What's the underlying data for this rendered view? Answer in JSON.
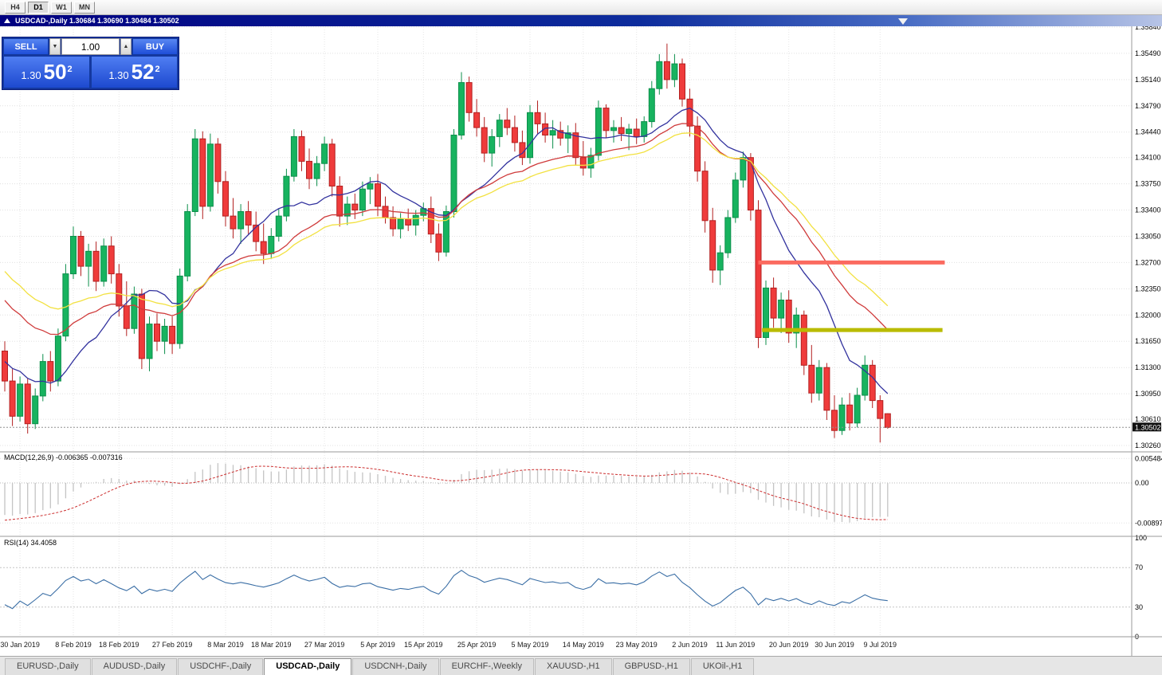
{
  "toolbar": {
    "periods": [
      "H4",
      "D1",
      "W1",
      "MN"
    ],
    "active_period": "D1"
  },
  "chart_window": {
    "title": "USDCAD-,Daily   1.30684 1.30690 1.30484 1.30502"
  },
  "trade_panel": {
    "sell_label": "SELL",
    "buy_label": "BUY",
    "volume": "1.00",
    "sell_price": {
      "base": "1.30",
      "big": "50",
      "sup": "2"
    },
    "buy_price": {
      "base": "1.30",
      "big": "52",
      "sup": "2"
    }
  },
  "indicators": {
    "macd": {
      "label": "MACD(12,26,9) -0.006365 -0.007316",
      "axis_labels": [
        "0.005484",
        "0.00",
        "-0.008974"
      ]
    },
    "rsi": {
      "label": "RSI(14) 34.4058",
      "axis_labels": [
        "100",
        "70",
        "30",
        "0"
      ],
      "levels": [
        70,
        30
      ]
    }
  },
  "tabs": {
    "active": "USDCAD-,Daily",
    "items": [
      "EURUSD-,Daily",
      "AUDUSD-,Daily",
      "USDCHF-,Daily",
      "USDCAD-,Daily",
      "USDCNH-,Daily",
      "EURCHF-,Weekly",
      "XAUUSD-,H1",
      "GBPUSD-,H1",
      "UKOil-,H1"
    ]
  },
  "chart_data": {
    "type": "candlestick",
    "symbol": "USDCAD-",
    "timeframe": "Daily",
    "bid": 1.30502,
    "price_ticks": [
      1.3584,
      1.3549,
      1.3514,
      1.3479,
      1.3444,
      1.341,
      1.3375,
      1.334,
      1.3305,
      1.327,
      1.3235,
      1.32,
      1.3165,
      1.313,
      1.3095,
      1.3061,
      1.3026
    ],
    "time_labels": [
      {
        "i": 2,
        "t": "30 Jan 2019"
      },
      {
        "i": 9,
        "t": "8 Feb 2019"
      },
      {
        "i": 15,
        "t": "18 Feb 2019"
      },
      {
        "i": 22,
        "t": "27 Feb 2019"
      },
      {
        "i": 29,
        "t": "8 Mar 2019"
      },
      {
        "i": 35,
        "t": "18 Mar 2019"
      },
      {
        "i": 42,
        "t": "27 Mar 2019"
      },
      {
        "i": 49,
        "t": "5 Apr 2019"
      },
      {
        "i": 55,
        "t": "15 Apr 2019"
      },
      {
        "i": 62,
        "t": "25 Apr 2019"
      },
      {
        "i": 69,
        "t": "5 May 2019"
      },
      {
        "i": 76,
        "t": "14 May 2019"
      },
      {
        "i": 83,
        "t": "23 May 2019"
      },
      {
        "i": 90,
        "t": "2 Jun 2019"
      },
      {
        "i": 96,
        "t": "11 Jun 2019"
      },
      {
        "i": 103,
        "t": "20 Jun 2019"
      },
      {
        "i": 109,
        "t": "30 Jun 2019"
      },
      {
        "i": 115,
        "t": "9 Jul 2019"
      }
    ],
    "candles": [
      [
        1.3152,
        1.3165,
        1.3098,
        1.3112
      ],
      [
        1.3112,
        1.3128,
        1.3052,
        1.3065
      ],
      [
        1.3065,
        1.3118,
        1.3058,
        1.3108
      ],
      [
        1.3108,
        1.3115,
        1.3042,
        1.3055
      ],
      [
        1.3055,
        1.3102,
        1.3048,
        1.3092
      ],
      [
        1.3092,
        1.3148,
        1.3085,
        1.3138
      ],
      [
        1.3138,
        1.3152,
        1.3098,
        1.3112
      ],
      [
        1.3112,
        1.3182,
        1.3105,
        1.3172
      ],
      [
        1.3172,
        1.3268,
        1.3165,
        1.3255
      ],
      [
        1.3255,
        1.3318,
        1.3248,
        1.3305
      ],
      [
        1.3305,
        1.3312,
        1.3252,
        1.3265
      ],
      [
        1.3265,
        1.3295,
        1.3238,
        1.3285
      ],
      [
        1.3285,
        1.3298,
        1.3232,
        1.3245
      ],
      [
        1.3245,
        1.3302,
        1.3238,
        1.3292
      ],
      [
        1.3292,
        1.3305,
        1.3242,
        1.3255
      ],
      [
        1.3255,
        1.3268,
        1.3198,
        1.3212
      ],
      [
        1.3212,
        1.3245,
        1.3172,
        1.3182
      ],
      [
        1.3182,
        1.3238,
        1.3175,
        1.3228
      ],
      [
        1.3228,
        1.3235,
        1.3128,
        1.3142
      ],
      [
        1.3142,
        1.3198,
        1.3125,
        1.3188
      ],
      [
        1.3188,
        1.3202,
        1.3152,
        1.3165
      ],
      [
        1.3165,
        1.3195,
        1.3148,
        1.3185
      ],
      [
        1.3185,
        1.3198,
        1.3148,
        1.3162
      ],
      [
        1.3162,
        1.3262,
        1.3155,
        1.3252
      ],
      [
        1.3252,
        1.3348,
        1.3245,
        1.3338
      ],
      [
        1.3338,
        1.3448,
        1.3332,
        1.3435
      ],
      [
        1.3435,
        1.3445,
        1.3328,
        1.3345
      ],
      [
        1.3345,
        1.3442,
        1.3338,
        1.3428
      ],
      [
        1.3428,
        1.3436,
        1.3362,
        1.3378
      ],
      [
        1.3378,
        1.3392,
        1.3318,
        1.3332
      ],
      [
        1.3332,
        1.3356,
        1.3302,
        1.3315
      ],
      [
        1.3315,
        1.3348,
        1.3295,
        1.3338
      ],
      [
        1.3338,
        1.3352,
        1.3308,
        1.332
      ],
      [
        1.332,
        1.3338,
        1.3285,
        1.3298
      ],
      [
        1.3298,
        1.3322,
        1.3268,
        1.3282
      ],
      [
        1.3282,
        1.3316,
        1.3275,
        1.3305
      ],
      [
        1.3305,
        1.3342,
        1.3298,
        1.3332
      ],
      [
        1.3332,
        1.3395,
        1.3325,
        1.3385
      ],
      [
        1.3385,
        1.3448,
        1.3378,
        1.3438
      ],
      [
        1.3438,
        1.3446,
        1.3392,
        1.3405
      ],
      [
        1.3405,
        1.3422,
        1.3368,
        1.3382
      ],
      [
        1.3382,
        1.3412,
        1.3372,
        1.3402
      ],
      [
        1.3402,
        1.3438,
        1.3392,
        1.3428
      ],
      [
        1.3428,
        1.3435,
        1.3358,
        1.3372
      ],
      [
        1.3372,
        1.3385,
        1.3318,
        1.3332
      ],
      [
        1.3332,
        1.3358,
        1.332,
        1.3348
      ],
      [
        1.3348,
        1.3362,
        1.3328,
        1.334
      ],
      [
        1.334,
        1.3378,
        1.3332,
        1.3368
      ],
      [
        1.3368,
        1.3384,
        1.3348,
        1.3375
      ],
      [
        1.3375,
        1.3388,
        1.3332,
        1.3345
      ],
      [
        1.3345,
        1.3358,
        1.3322,
        1.333
      ],
      [
        1.333,
        1.3345,
        1.3305,
        1.3315
      ],
      [
        1.3315,
        1.3336,
        1.3302,
        1.3328
      ],
      [
        1.3328,
        1.3342,
        1.3312,
        1.332
      ],
      [
        1.332,
        1.334,
        1.3306,
        1.3333
      ],
      [
        1.3333,
        1.335,
        1.3325,
        1.3342
      ],
      [
        1.3342,
        1.3358,
        1.3296,
        1.3308
      ],
      [
        1.3308,
        1.3322,
        1.3272,
        1.3284
      ],
      [
        1.3284,
        1.3346,
        1.3278,
        1.3338
      ],
      [
        1.3338,
        1.3448,
        1.333,
        1.344
      ],
      [
        1.344,
        1.3524,
        1.3434,
        1.351
      ],
      [
        1.351,
        1.3518,
        1.3458,
        1.347
      ],
      [
        1.347,
        1.3488,
        1.3438,
        1.345
      ],
      [
        1.345,
        1.3464,
        1.3404,
        1.3416
      ],
      [
        1.3416,
        1.3448,
        1.3398,
        1.3438
      ],
      [
        1.3438,
        1.3468,
        1.3424,
        1.346
      ],
      [
        1.346,
        1.3476,
        1.344,
        1.345
      ],
      [
        1.345,
        1.3466,
        1.3418,
        1.343
      ],
      [
        1.343,
        1.3446,
        1.34,
        1.341
      ],
      [
        1.341,
        1.348,
        1.3402,
        1.347
      ],
      [
        1.347,
        1.3486,
        1.3442,
        1.3455
      ],
      [
        1.3455,
        1.347,
        1.343,
        1.344
      ],
      [
        1.344,
        1.346,
        1.3422,
        1.3446
      ],
      [
        1.3446,
        1.3458,
        1.3426,
        1.3436
      ],
      [
        1.3436,
        1.3453,
        1.3416,
        1.3443
      ],
      [
        1.3443,
        1.3456,
        1.34,
        1.341
      ],
      [
        1.341,
        1.3432,
        1.3386,
        1.3396
      ],
      [
        1.3396,
        1.3423,
        1.3383,
        1.3413
      ],
      [
        1.3413,
        1.3486,
        1.3406,
        1.3476
      ],
      [
        1.3476,
        1.3481,
        1.3436,
        1.3446
      ],
      [
        1.3446,
        1.346,
        1.343,
        1.345
      ],
      [
        1.345,
        1.3464,
        1.3432,
        1.3442
      ],
      [
        1.3442,
        1.3455,
        1.342,
        1.3448
      ],
      [
        1.3448,
        1.3462,
        1.3428,
        1.3438
      ],
      [
        1.3438,
        1.3465,
        1.343,
        1.3458
      ],
      [
        1.3458,
        1.3512,
        1.345,
        1.3502
      ],
      [
        1.3502,
        1.3548,
        1.3494,
        1.3538
      ],
      [
        1.3538,
        1.3562,
        1.3502,
        1.3514
      ],
      [
        1.3514,
        1.3548,
        1.3504,
        1.3535
      ],
      [
        1.3535,
        1.3542,
        1.3478,
        1.3488
      ],
      [
        1.3488,
        1.3502,
        1.3438,
        1.3452
      ],
      [
        1.3452,
        1.3465,
        1.3378,
        1.3392
      ],
      [
        1.3392,
        1.3405,
        1.331,
        1.3326
      ],
      [
        1.3326,
        1.3343,
        1.3243,
        1.326
      ],
      [
        1.326,
        1.3293,
        1.324,
        1.3283
      ],
      [
        1.3283,
        1.334,
        1.3276,
        1.333
      ],
      [
        1.333,
        1.339,
        1.3323,
        1.338
      ],
      [
        1.338,
        1.3418,
        1.337,
        1.341
      ],
      [
        1.341,
        1.3416,
        1.3326,
        1.334
      ],
      [
        1.334,
        1.3353,
        1.3156,
        1.317
      ],
      [
        1.317,
        1.3246,
        1.316,
        1.3236
      ],
      [
        1.3236,
        1.325,
        1.3183,
        1.3196
      ],
      [
        1.3196,
        1.323,
        1.3176,
        1.322
      ],
      [
        1.322,
        1.3233,
        1.3163,
        1.3176
      ],
      [
        1.3176,
        1.321,
        1.3156,
        1.32
      ],
      [
        1.32,
        1.3206,
        1.312,
        1.3133
      ],
      [
        1.3133,
        1.316,
        1.3083,
        1.3096
      ],
      [
        1.3096,
        1.314,
        1.3086,
        1.313
      ],
      [
        1.313,
        1.3136,
        1.306,
        1.3073
      ],
      [
        1.3073,
        1.3093,
        1.3036,
        1.3046
      ],
      [
        1.3046,
        1.309,
        1.304,
        1.308
      ],
      [
        1.308,
        1.3096,
        1.3046,
        1.3056
      ],
      [
        1.3056,
        1.3103,
        1.305,
        1.3093
      ],
      [
        1.3093,
        1.3146,
        1.3086,
        1.3133
      ],
      [
        1.3133,
        1.314,
        1.3076,
        1.3086
      ],
      [
        1.3086,
        1.3093,
        1.303,
        1.3062
      ],
      [
        1.30684,
        1.3069,
        1.30484,
        1.30502
      ]
    ],
    "warmup_closes": [
      1.3595,
      1.362,
      1.364,
      1.3615,
      1.358,
      1.3545,
      1.356,
      1.353,
      1.3495,
      1.351,
      1.347,
      1.344,
      1.346,
      1.342,
      1.3385,
      1.34,
      1.3365,
      1.333,
      1.335,
      1.331,
      1.3285,
      1.33,
      1.3265,
      1.324,
      1.326,
      1.3225,
      1.32,
      1.3215,
      1.3185,
      1.316,
      1.3175,
      1.315,
      1.313,
      1.3145,
      1.312,
      1.3105,
      1.3118,
      1.3095,
      1.314,
      1.316
    ],
    "moving_averages": [
      {
        "period": 13,
        "method": "sma",
        "color": "#32329e"
      },
      {
        "period": 26,
        "method": "ema",
        "color": "#cf3a3a"
      },
      {
        "period": 34,
        "method": "ema",
        "color": "#f2e140"
      }
    ],
    "macd": {
      "fast": 12,
      "slow": 26,
      "signal": 9,
      "histogram_color": "#c4c4c4",
      "signal_color": "#cc2e2e",
      "current_macd": -0.006365,
      "current_signal": -0.007316
    },
    "rsi": {
      "period": 14,
      "color": "#3a6ea5",
      "current": 34.4058
    },
    "hlines": [
      {
        "price": 1.327,
        "color": "#fb6b60",
        "width": 5,
        "from_i": 99,
        "to_i": 123.5
      },
      {
        "price": 1.318,
        "color": "#b9bb00",
        "width": 5,
        "from_i": 99.5,
        "to_i": 123.2
      }
    ]
  }
}
